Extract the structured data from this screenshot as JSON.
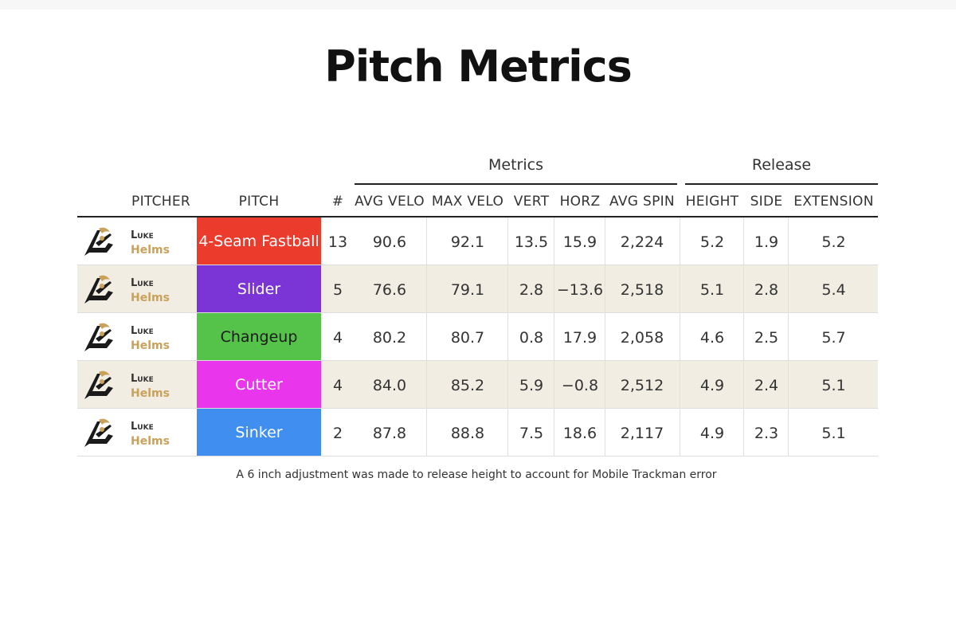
{
  "title": "Pitch Metrics",
  "groups": {
    "metrics": "Metrics",
    "release": "Release"
  },
  "columns": [
    "PITCHER",
    "PITCH",
    "#",
    "AVG VELO",
    "MAX VELO",
    "VERT",
    "HORZ",
    "AVG SPIN",
    "HEIGHT",
    "SIDE",
    "EXTENSION"
  ],
  "rows": [
    {
      "first": "Luke",
      "last": "Helms",
      "pitch": "4-Seam Fastball",
      "color": "#ea3b2c",
      "text_color": "#ffffff",
      "count": "13",
      "avg_velo": "90.6",
      "max_velo": "92.1",
      "vert": "13.5",
      "horz": "15.9",
      "avg_spin": "2,224",
      "height": "5.2",
      "side": "1.9",
      "extension": "5.2"
    },
    {
      "first": "Luke",
      "last": "Helms",
      "pitch": "Slider",
      "color": "#7b35d6",
      "text_color": "#ffffff",
      "count": "5",
      "avg_velo": "76.6",
      "max_velo": "79.1",
      "vert": "2.8",
      "horz": "−13.6",
      "avg_spin": "2,518",
      "height": "5.1",
      "side": "2.8",
      "extension": "5.4"
    },
    {
      "first": "Luke",
      "last": "Helms",
      "pitch": "Changeup",
      "color": "#55c24a",
      "text_color": "#1a1a1a",
      "count": "4",
      "avg_velo": "80.2",
      "max_velo": "80.7",
      "vert": "0.8",
      "horz": "17.9",
      "avg_spin": "2,058",
      "height": "4.6",
      "side": "2.5",
      "extension": "5.7"
    },
    {
      "first": "Luke",
      "last": "Helms",
      "pitch": "Cutter",
      "color": "#e936ec",
      "text_color": "#ffffff",
      "count": "4",
      "avg_velo": "84.0",
      "max_velo": "85.2",
      "vert": "5.9",
      "horz": "−0.8",
      "avg_spin": "2,512",
      "height": "4.9",
      "side": "2.4",
      "extension": "5.1"
    },
    {
      "first": "Luke",
      "last": "Helms",
      "pitch": "Sinker",
      "color": "#3f8ef0",
      "text_color": "#ffffff",
      "count": "2",
      "avg_velo": "87.8",
      "max_velo": "88.8",
      "vert": "7.5",
      "horz": "18.6",
      "avg_spin": "2,117",
      "height": "4.9",
      "side": "2.3",
      "extension": "5.1"
    }
  ],
  "note": "A 6 inch adjustment was made to release height to account for Mobile Trackman error",
  "logo_icon": "team-logo-icon"
}
